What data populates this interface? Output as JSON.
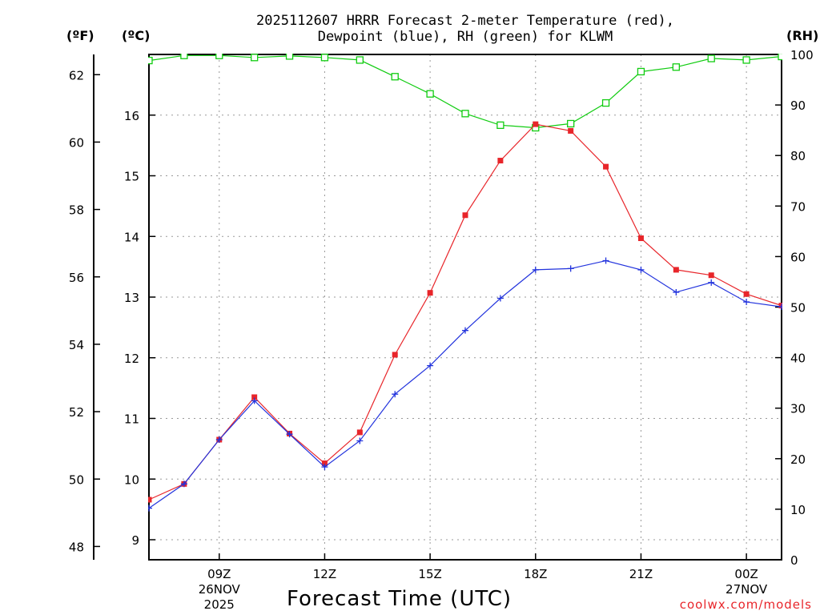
{
  "header": {
    "title_line1": "2025112607 HRRR Forecast 2-meter Temperature (red),",
    "title_line2": "Dewpoint (blue), RH (green) for KLWM",
    "unit_f": "(ºF)",
    "unit_c": "(ºC)",
    "unit_rh": "(RH)"
  },
  "footer": {
    "xlabel": "Forecast Time (UTC)",
    "credit": "coolwx.com/models"
  },
  "colors": {
    "temp": "#e8252a",
    "dew": "#2233dd",
    "rh": "#11cc11",
    "grid": "#999999"
  },
  "chart_data": {
    "type": "line",
    "title": "2025112607 HRRR Forecast 2-meter Temperature (red), Dewpoint (blue), RH (green) for KLWM",
    "xlabel": "Forecast Time (UTC)",
    "x_hours": [
      7,
      8,
      9,
      10,
      11,
      12,
      13,
      14,
      15,
      16,
      17,
      18,
      19,
      20,
      21,
      22,
      23,
      24,
      25
    ],
    "xlim": [
      7,
      25
    ],
    "x_ticks": [
      {
        "hour": 9,
        "label": "09Z",
        "sub1": "26NOV",
        "sub2": "2025"
      },
      {
        "hour": 12,
        "label": "12Z",
        "sub1": "",
        "sub2": ""
      },
      {
        "hour": 15,
        "label": "15Z",
        "sub1": "",
        "sub2": ""
      },
      {
        "hour": 18,
        "label": "18Z",
        "sub1": "",
        "sub2": ""
      },
      {
        "hour": 21,
        "label": "21Z",
        "sub1": "",
        "sub2": ""
      },
      {
        "hour": 24,
        "label": "00Z",
        "sub1": "27NOV",
        "sub2": ""
      }
    ],
    "y_c_range": [
      8.67,
      17.0
    ],
    "y_c_ticks": [
      9,
      10,
      11,
      12,
      13,
      14,
      15,
      16
    ],
    "y_f_ticks": [
      48,
      50,
      52,
      54,
      56,
      58,
      60,
      62
    ],
    "y_rh_range": [
      0,
      100
    ],
    "y_rh_ticks": [
      0,
      10,
      20,
      30,
      40,
      50,
      60,
      70,
      80,
      90,
      100
    ],
    "series": [
      {
        "name": "Temperature (red)",
        "unit": "C",
        "values": [
          9.66,
          9.92,
          10.65,
          11.35,
          10.75,
          10.26,
          10.77,
          12.05,
          13.07,
          14.35,
          15.25,
          15.85,
          15.74,
          15.15,
          13.97,
          13.45,
          13.36,
          13.05,
          12.86
        ]
      },
      {
        "name": "Dewpoint (blue)",
        "unit": "C",
        "values": [
          9.52,
          9.92,
          10.65,
          11.29,
          10.74,
          10.2,
          10.63,
          11.4,
          11.87,
          12.45,
          12.98,
          13.45,
          13.47,
          13.6,
          13.45,
          13.08,
          13.24,
          12.92,
          12.84
        ]
      },
      {
        "name": "RH (green)",
        "unit": "%",
        "values": [
          98.8,
          99.8,
          99.8,
          99.4,
          99.7,
          99.4,
          98.9,
          95.6,
          92.2,
          88.3,
          86.0,
          85.5,
          86.3,
          90.4,
          96.6,
          97.5,
          99.2,
          98.9,
          99.6
        ]
      }
    ]
  }
}
